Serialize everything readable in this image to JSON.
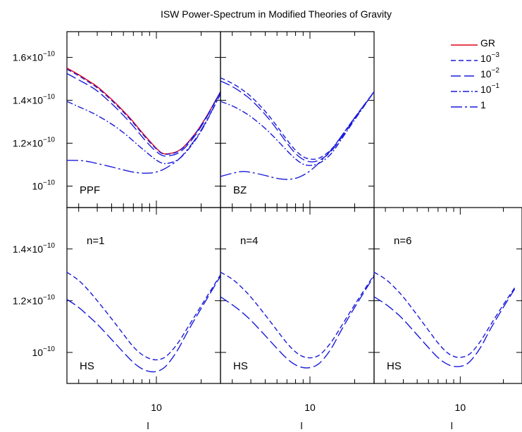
{
  "title": "ISW Power-Spectrum in Modified Theories of Gravity",
  "colors": {
    "gr": "#e0001a",
    "mg": "#1a1adb",
    "frame": "#000000"
  },
  "legend": [
    {
      "label": "GR",
      "sup": "",
      "style": "solid",
      "color": "#e0001a"
    },
    {
      "label": "10",
      "sup": "−3",
      "style": "dashed",
      "color": "#1a1adb"
    },
    {
      "label": "10",
      "sup": "−2",
      "style": "longdash",
      "color": "#1a1adb"
    },
    {
      "label": "10",
      "sup": "−1",
      "style": "dashdot",
      "color": "#1a1adb"
    },
    {
      "label": "1",
      "sup": "",
      "style": "longdashdot",
      "color": "#1a1adb"
    }
  ],
  "x_tick_label": "10",
  "x_axis_glyph": "l",
  "y_tick_labels_top": [
    {
      "mant": "1.6×10",
      "exp": "−10",
      "value": 1.6e-10
    },
    {
      "mant": "1.4×10",
      "exp": "−10",
      "value": 1.4e-10
    },
    {
      "mant": "1.2×10",
      "exp": "−10",
      "value": 1.2e-10
    },
    {
      "mant": "10",
      "exp": "−10",
      "value": 1e-10
    }
  ],
  "y_tick_labels_bottom": [
    {
      "mant": "1.4×10",
      "exp": "−10",
      "value": 1.4e-10
    },
    {
      "mant": "1.2×10",
      "exp": "−10",
      "value": 1.2e-10
    },
    {
      "mant": "10",
      "exp": "−10",
      "value": 1e-10
    }
  ],
  "chart_data": [
    {
      "type": "line",
      "panel": "PPF",
      "label": "PPF",
      "row": 0,
      "col": 0,
      "x_scale": "log",
      "xlim": [
        2.5,
        27
      ],
      "ylim": [
        9e-11,
        1.72e-10
      ],
      "series": [
        {
          "name": "GR",
          "style": "solid",
          "color": "#e0001a",
          "x": [
            2.5,
            3,
            3.5,
            4,
            5,
            6,
            7,
            8,
            9,
            10,
            11,
            12,
            14,
            16,
            20,
            27
          ],
          "y": [
            1.55,
            1.52,
            1.49,
            1.465,
            1.405,
            1.35,
            1.3,
            1.25,
            1.21,
            1.175,
            1.15,
            1.15,
            1.16,
            1.195,
            1.28,
            1.44
          ]
        },
        {
          "name": "10⁻³",
          "style": "dashed",
          "color": "#1a1adb",
          "x": [
            2.5,
            3,
            3.5,
            4,
            5,
            6,
            7,
            8,
            9,
            10,
            11,
            12,
            14,
            16,
            20,
            27
          ],
          "y": [
            1.545,
            1.515,
            1.485,
            1.46,
            1.4,
            1.345,
            1.295,
            1.245,
            1.205,
            1.172,
            1.148,
            1.148,
            1.158,
            1.193,
            1.278,
            1.44
          ]
        },
        {
          "name": "10⁻²",
          "style": "longdash",
          "color": "#1a1adb",
          "x": [
            2.5,
            3,
            3.5,
            4,
            5,
            6,
            7,
            8,
            9,
            10,
            11,
            12,
            14,
            16,
            20,
            27
          ],
          "y": [
            1.525,
            1.495,
            1.47,
            1.445,
            1.385,
            1.33,
            1.28,
            1.23,
            1.19,
            1.16,
            1.14,
            1.14,
            1.15,
            1.185,
            1.272,
            1.44
          ]
        },
        {
          "name": "10⁻¹",
          "style": "dashdot",
          "color": "#1a1adb",
          "x": [
            2.5,
            3,
            3.5,
            4,
            5,
            6,
            7,
            8,
            9,
            10,
            11,
            12,
            14,
            16,
            20,
            27
          ],
          "y": [
            1.395,
            1.37,
            1.35,
            1.33,
            1.29,
            1.25,
            1.21,
            1.175,
            1.145,
            1.12,
            1.105,
            1.105,
            1.12,
            1.16,
            1.25,
            1.43
          ]
        },
        {
          "name": "1",
          "style": "longdashdot",
          "color": "#1a1adb",
          "x": [
            2.5,
            3,
            3.5,
            4,
            5,
            6,
            7,
            8,
            9,
            10,
            11,
            12,
            14,
            16,
            20,
            27
          ],
          "y": [
            1.12,
            1.12,
            1.115,
            1.105,
            1.09,
            1.075,
            1.065,
            1.06,
            1.06,
            1.065,
            1.075,
            1.09,
            1.12,
            1.165,
            1.255,
            1.43
          ]
        }
      ]
    },
    {
      "type": "line",
      "panel": "BZ",
      "label": "BZ",
      "row": 0,
      "col": 1,
      "x_scale": "log",
      "xlim": [
        2.5,
        27
      ],
      "ylim": [
        9e-11,
        1.72e-10
      ],
      "series": [
        {
          "name": "10⁻³",
          "style": "dashed",
          "color": "#1a1adb",
          "x": [
            2.5,
            3,
            3.5,
            4,
            5,
            6,
            7,
            8,
            9,
            10,
            11,
            12,
            14,
            16,
            20,
            27
          ],
          "y": [
            1.505,
            1.48,
            1.45,
            1.42,
            1.35,
            1.28,
            1.215,
            1.165,
            1.135,
            1.125,
            1.125,
            1.135,
            1.17,
            1.225,
            1.32,
            1.44
          ]
        },
        {
          "name": "10⁻²",
          "style": "longdash",
          "color": "#1a1adb",
          "x": [
            2.5,
            3,
            3.5,
            4,
            5,
            6,
            7,
            8,
            9,
            10,
            11,
            12,
            14,
            16,
            20,
            27
          ],
          "y": [
            1.49,
            1.465,
            1.435,
            1.405,
            1.335,
            1.265,
            1.2,
            1.15,
            1.122,
            1.112,
            1.115,
            1.125,
            1.162,
            1.218,
            1.315,
            1.44
          ]
        },
        {
          "name": "10⁻¹",
          "style": "dashdot",
          "color": "#1a1adb",
          "x": [
            2.5,
            3,
            3.5,
            4,
            5,
            6,
            7,
            8,
            9,
            10,
            11,
            12,
            14,
            16,
            20,
            27
          ],
          "y": [
            1.395,
            1.375,
            1.35,
            1.325,
            1.27,
            1.215,
            1.165,
            1.125,
            1.1,
            1.095,
            1.1,
            1.112,
            1.15,
            1.21,
            1.31,
            1.44
          ]
        },
        {
          "name": "1",
          "style": "longdashdot",
          "color": "#1a1adb",
          "x": [
            2.5,
            3,
            3.5,
            4,
            5,
            6,
            7,
            8,
            9,
            10,
            11,
            12,
            14,
            16,
            20,
            27
          ],
          "y": [
            1.045,
            1.06,
            1.07,
            1.065,
            1.05,
            1.035,
            1.03,
            1.035,
            1.05,
            1.07,
            1.095,
            1.12,
            1.17,
            1.225,
            1.32,
            1.44
          ]
        }
      ]
    },
    {
      "type": "line",
      "panel": "HS n=1",
      "label": "HS",
      "n_label": "n=1",
      "row": 1,
      "col": 0,
      "x_scale": "log",
      "xlim": [
        2.5,
        27
      ],
      "ylim": [
        8.8e-11,
        1.56e-10
      ],
      "series": [
        {
          "name": "10⁻³",
          "style": "dashed",
          "color": "#1a1adb",
          "x": [
            2.5,
            3,
            3.5,
            4,
            5,
            6,
            7,
            8,
            9,
            10,
            11,
            12,
            14,
            16,
            20,
            27
          ],
          "y": [
            1.31,
            1.28,
            1.24,
            1.2,
            1.13,
            1.07,
            1.02,
            0.99,
            0.975,
            0.97,
            0.975,
            0.99,
            1.035,
            1.09,
            1.18,
            1.3
          ]
        },
        {
          "name": "10⁻²",
          "style": "longdash",
          "color": "#1a1adb",
          "x": [
            2.5,
            3,
            3.5,
            4,
            5,
            6,
            7,
            8,
            9,
            10,
            11,
            12,
            14,
            16,
            20,
            27
          ],
          "y": [
            1.205,
            1.175,
            1.14,
            1.11,
            1.05,
            1.0,
            0.96,
            0.935,
            0.925,
            0.925,
            0.935,
            0.955,
            1.01,
            1.075,
            1.17,
            1.295
          ]
        }
      ]
    },
    {
      "type": "line",
      "panel": "HS n=4",
      "label": "HS",
      "n_label": "n=4",
      "row": 1,
      "col": 1,
      "x_scale": "log",
      "xlim": [
        2.5,
        27
      ],
      "ylim": [
        8.8e-11,
        1.56e-10
      ],
      "series": [
        {
          "name": "10⁻³",
          "style": "dashed",
          "color": "#1a1adb",
          "x": [
            2.5,
            3,
            3.5,
            4,
            5,
            6,
            7,
            8,
            9,
            10,
            11,
            12,
            14,
            16,
            20,
            27
          ],
          "y": [
            1.31,
            1.285,
            1.25,
            1.215,
            1.145,
            1.085,
            1.035,
            1.0,
            0.982,
            0.978,
            0.982,
            0.995,
            1.04,
            1.095,
            1.185,
            1.3
          ]
        },
        {
          "name": "10⁻²",
          "style": "longdash",
          "color": "#1a1adb",
          "x": [
            2.5,
            3,
            3.5,
            4,
            5,
            6,
            7,
            8,
            9,
            10,
            11,
            12,
            14,
            16,
            20,
            27
          ],
          "y": [
            1.215,
            1.185,
            1.155,
            1.125,
            1.065,
            1.015,
            0.975,
            0.95,
            0.94,
            0.94,
            0.948,
            0.965,
            1.015,
            1.08,
            1.175,
            1.295
          ]
        }
      ]
    },
    {
      "type": "line",
      "panel": "HS n=6",
      "label": "HS",
      "n_label": "n=6",
      "row": 1,
      "col": 2,
      "x_scale": "log",
      "xlim": [
        2.5,
        27
      ],
      "ylim": [
        8.8e-11,
        1.56e-10
      ],
      "series": [
        {
          "name": "10⁻³",
          "style": "dashed",
          "color": "#1a1adb",
          "x": [
            2.5,
            3,
            3.5,
            4,
            5,
            6,
            7,
            8,
            9,
            10,
            11,
            12,
            14,
            16,
            20,
            24
          ],
          "y": [
            1.31,
            1.285,
            1.25,
            1.215,
            1.145,
            1.085,
            1.035,
            1.0,
            0.983,
            0.98,
            0.985,
            0.998,
            1.045,
            1.1,
            1.185,
            1.25
          ]
        },
        {
          "name": "10⁻²",
          "style": "longdash",
          "color": "#1a1adb",
          "x": [
            2.5,
            3,
            3.5,
            4,
            5,
            6,
            7,
            8,
            9,
            10,
            11,
            12,
            14,
            16,
            20,
            24
          ],
          "y": [
            1.215,
            1.188,
            1.158,
            1.128,
            1.068,
            1.018,
            0.978,
            0.955,
            0.945,
            0.945,
            0.952,
            0.97,
            1.02,
            1.085,
            1.175,
            1.245
          ]
        }
      ]
    }
  ]
}
